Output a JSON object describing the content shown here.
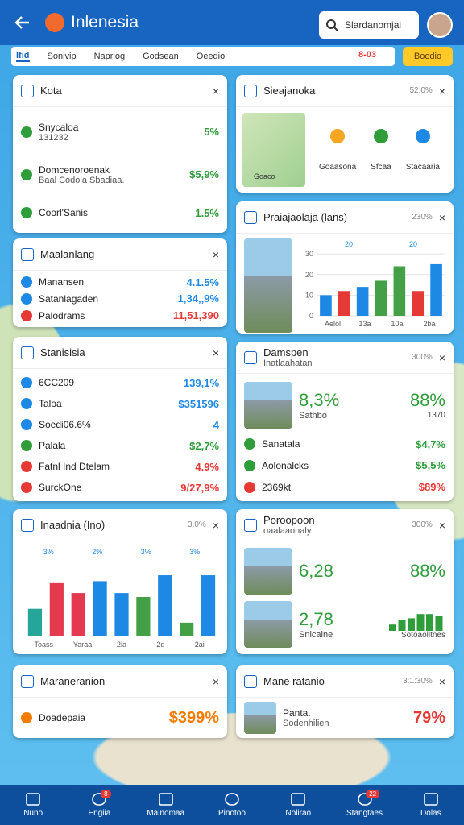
{
  "header": {
    "title": "Inlenesia",
    "search": "Slardanomjai"
  },
  "tabs": {
    "items": [
      "Ifid",
      "Sonivip",
      "Naprlog",
      "Godsean",
      "Oeedio"
    ],
    "chip": "8-03",
    "button": "Boodio"
  },
  "left": [
    {
      "title": "Kota",
      "items": [
        {
          "name": "Snycaloa",
          "sub": "131232",
          "value": "5%",
          "color": "#2e9d3a"
        },
        {
          "name": "Domcenoroenak",
          "sub": "Baal Codola Sbadiaa.",
          "value": "$5,9%",
          "color": "#2e9d3a"
        },
        {
          "name": "Coorl'Sanis",
          "value": "1.5%",
          "color": "#2e9d3a"
        }
      ]
    },
    {
      "title": "Maalanlang",
      "items": [
        {
          "name": "Manansen",
          "value": "4.1.5%",
          "color": "#1e88e5"
        },
        {
          "name": "Satanlagaden",
          "value": "1,34,,9%",
          "color": "#1e88e5"
        },
        {
          "name": "Palodrams",
          "value": "11,51,390",
          "color": "#e53935"
        }
      ]
    },
    {
      "title": "Stanisisia",
      "items": [
        {
          "name": "6CC209",
          "value": "139,1%",
          "color": "#1e88e5"
        },
        {
          "name": "Taloa",
          "value": "$351596",
          "color": "#1e88e5"
        },
        {
          "name": "Soedi06.6%",
          "value": "4",
          "color": "#1e88e5"
        },
        {
          "name": "Palala",
          "value": "$2,7%",
          "color": "#2e9d3a"
        },
        {
          "name": "Fatnl Ind Dtelam",
          "value": "4.9%",
          "color": "#e53935"
        },
        {
          "name": "SurckOne",
          "value": "9/27,9%",
          "color": "#e53935"
        }
      ]
    },
    {
      "title": "Inaadnia (Ino)",
      "meta": "3.0%",
      "chart": {
        "type": "bar",
        "ylim": [
          0,
          40
        ],
        "bars": [
          {
            "value": 14,
            "color": "#26a69a"
          },
          {
            "value": 27,
            "color": "#e53950"
          },
          {
            "value": 22,
            "color": "#e53950"
          },
          {
            "value": 28,
            "color": "#1e88e5"
          },
          {
            "value": 22,
            "color": "#1e88e5"
          },
          {
            "value": 20,
            "color": "#43a047"
          },
          {
            "value": 31,
            "color": "#1e88e5"
          },
          {
            "value": 7,
            "color": "#43a047"
          },
          {
            "value": 31,
            "color": "#1e88e5"
          }
        ],
        "labels": [
          "Toass",
          "Yaraa",
          "2ia",
          "2d",
          "2ai"
        ],
        "annotations": [
          "3%",
          "2%",
          "3%",
          "3%"
        ]
      }
    },
    {
      "title": "Maraneranion",
      "items": [
        {
          "name": "Doadepaia",
          "value": "$399%",
          "color": "#f57c00"
        }
      ]
    }
  ],
  "right": [
    {
      "title": "Sieajanoka",
      "meta": "52,0%",
      "map_label": "Goaco",
      "icons": [
        "Goaasona",
        "Sfcaa",
        "Stacaaria"
      ]
    },
    {
      "title": "Praiajaolaja (lans)",
      "meta": "230%",
      "chart": {
        "type": "bar",
        "ylim": [
          0,
          32
        ],
        "yticks": [
          0,
          10,
          20,
          30
        ],
        "bars": [
          {
            "value": 10,
            "color": "#1e88e5"
          },
          {
            "value": 12,
            "color": "#e53935"
          },
          {
            "value": 14,
            "color": "#1e88e5"
          },
          {
            "value": 17,
            "color": "#43a047"
          },
          {
            "value": 24,
            "color": "#43a047"
          },
          {
            "value": 12,
            "color": "#e53935"
          },
          {
            "value": 25,
            "color": "#1e88e5"
          }
        ],
        "labels": [
          "Aelol",
          "13a",
          "10a",
          "2ba"
        ],
        "annotations": [
          "20",
          "20"
        ]
      }
    },
    {
      "title": "Damspen",
      "sub": "Inatlaahatan",
      "meta": "300%",
      "stat_rows": [
        {
          "left": "8,3%",
          "right": "88%",
          "left_sub": "Sathbo",
          "right_sub": "1370",
          "color": "#2e9d3a"
        }
      ],
      "items": [
        {
          "name": "Sanatala",
          "value": "$4,7%",
          "color": "#2e9d3a"
        },
        {
          "name": "Aolonalcks",
          "value": "$5,5%",
          "color": "#2e9d3a"
        },
        {
          "name": "2369kt",
          "value": "$89%",
          "color": "#e53935"
        }
      ]
    },
    {
      "title": "Poroopoon",
      "sub": "oaalaaonaly",
      "meta": "300%",
      "stat_rows": [
        {
          "left": "6,28",
          "right": "88%",
          "color": "#2e9d3a"
        },
        {
          "left": "2,78",
          "left_sub": "Snicalne",
          "right_sub": "Sotoaolitnes",
          "color": "#2e9d3a",
          "mini": {
            "ylim": [
              0,
              10
            ],
            "values": [
              3,
              5,
              6,
              8,
              8,
              7
            ]
          }
        }
      ]
    },
    {
      "title": "Mane ratanio",
      "meta": "3:1:30%",
      "items": [
        {
          "name": "Panta.",
          "sub": "Sodenhilien",
          "value": "79%",
          "color": "#e53935"
        }
      ]
    }
  ],
  "nav": [
    {
      "label": "Nuno"
    },
    {
      "label": "Engiia",
      "badge": "8"
    },
    {
      "label": "Mainomaa"
    },
    {
      "label": "Pinotoo"
    },
    {
      "label": "Nolirao"
    },
    {
      "label": "Stangtaes",
      "badge": "22"
    },
    {
      "label": "Dolas"
    }
  ]
}
